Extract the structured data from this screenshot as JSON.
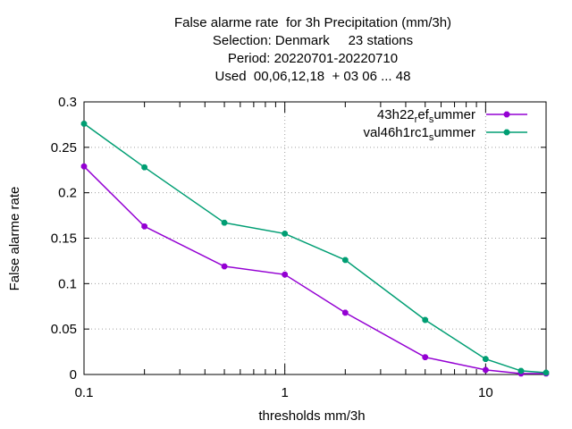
{
  "chart_data": {
    "type": "line",
    "title_lines": [
      "False alarme rate  for 3h Precipitation (mm/3h)",
      "Selection: Denmark     23 stations",
      "Period: 20220701-20220710",
      "Used  00,06,12,18  + 03 06 ... 48"
    ],
    "xlabel": "thresholds mm/3h",
    "ylabel": "False alarme rate",
    "xscale": "log",
    "xlim": [
      0.1,
      20
    ],
    "ylim": [
      0,
      0.3
    ],
    "x_ticks": [
      0.1,
      1,
      10
    ],
    "x_tick_labels": [
      "0.1",
      "1",
      "10"
    ],
    "y_ticks": [
      0,
      0.05,
      0.1,
      0.15,
      0.2,
      0.25,
      0.3
    ],
    "y_tick_labels": [
      "0",
      "0.05",
      "0.1",
      "0.15",
      "0.2",
      "0.25",
      "0.3"
    ],
    "grid": true,
    "legend_position": "top-right",
    "x": [
      0.1,
      0.2,
      0.5,
      1,
      2,
      5,
      10,
      15,
      20
    ],
    "series": [
      {
        "name": "43h22_ref_summer",
        "legend_parts": [
          {
            "text": "43h22",
            "style": "normal"
          },
          {
            "text": "r",
            "style": "sub"
          },
          {
            "text": "ef",
            "style": "normal"
          },
          {
            "text": "s",
            "style": "sub"
          },
          {
            "text": "ummer",
            "style": "normal"
          }
        ],
        "color": "#9400d3",
        "values": [
          0.229,
          0.163,
          0.119,
          0.11,
          0.068,
          0.019,
          0.005,
          0.001,
          0.001
        ]
      },
      {
        "name": "val46h1rc1_summer",
        "legend_parts": [
          {
            "text": "val46h1rc1",
            "style": "normal"
          },
          {
            "text": "s",
            "style": "sub"
          },
          {
            "text": "ummer",
            "style": "normal"
          }
        ],
        "color": "#009e73",
        "values": [
          0.276,
          0.228,
          0.167,
          0.155,
          0.126,
          0.06,
          0.017,
          0.004,
          0.002
        ]
      }
    ]
  }
}
